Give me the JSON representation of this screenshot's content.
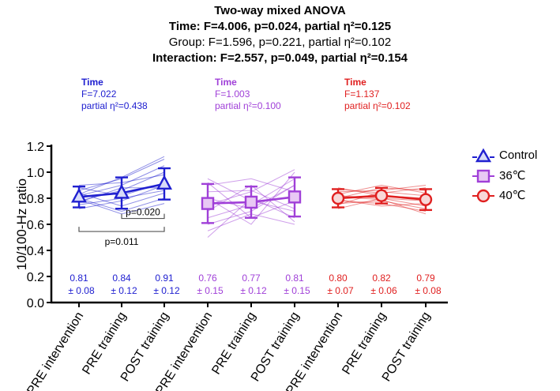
{
  "header": {
    "title": "Two-way mixed ANOVA",
    "time_line": "Time: F=4.006, p=0.024, partial η²=0.125",
    "group_line": "Group: F=1.596, p=0.221, partial η²=0.102",
    "interaction_line": "Interaction: F=2.557, p=0.049, partial η²=0.154"
  },
  "colors": {
    "control": "#2020d0",
    "c36": "#a040d8",
    "c40": "#e02020",
    "axis": "#000000"
  },
  "annotations": [
    {
      "title": "Time",
      "f": "F=7.022",
      "eta": "partial η²=0.438"
    },
    {
      "title": "Time",
      "f": "F=1.003",
      "eta": "partial η²=0.100"
    },
    {
      "title": "Time",
      "f": "F=1.137",
      "eta": "partial η²=0.102"
    }
  ],
  "legend": [
    {
      "label": "Control",
      "marker": "triangle"
    },
    {
      "label": "36℃",
      "marker": "square"
    },
    {
      "label": "40℃",
      "marker": "circle"
    }
  ],
  "chart_data": {
    "type": "scatter",
    "ylabel": "10/100-Hz ratio",
    "xlabel": "",
    "ylim": [
      0.0,
      1.2
    ],
    "yticks": [
      "0.0",
      "0.2",
      "0.4",
      "0.6",
      "0.8",
      "1.0",
      "1.2"
    ],
    "categories": [
      "PRE intervention",
      "PRE training",
      "POST training",
      "PRE intervention",
      "PRE training",
      "POST training",
      "PRE intervention",
      "PRE training",
      "POST training"
    ],
    "series": [
      {
        "name": "Control",
        "marker": "triangle",
        "means": [
          0.81,
          0.84,
          0.91
        ],
        "sds": [
          0.08,
          0.12,
          0.12
        ],
        "mean_labels": [
          "0.81",
          "0.84",
          "0.91"
        ],
        "sd_labels": [
          "± 0.08",
          "± 0.12",
          "± 0.12"
        ],
        "individuals": [
          [
            0.72,
            0.78,
            0.9
          ],
          [
            0.75,
            0.8,
            0.86
          ],
          [
            0.78,
            0.86,
            1.0
          ],
          [
            0.8,
            0.7,
            0.8
          ],
          [
            0.82,
            0.9,
            1.05
          ],
          [
            0.84,
            0.74,
            0.84
          ],
          [
            0.86,
            0.95,
            1.1
          ],
          [
            0.88,
            0.82,
            0.92
          ],
          [
            0.79,
            0.68,
            0.76
          ],
          [
            0.83,
            0.96,
            1.12
          ],
          [
            0.77,
            0.88,
            0.88
          ],
          [
            0.9,
            0.92,
            0.98
          ]
        ]
      },
      {
        "name": "36℃",
        "marker": "square",
        "means": [
          0.76,
          0.77,
          0.81
        ],
        "sds": [
          0.15,
          0.12,
          0.15
        ],
        "mean_labels": [
          "0.76",
          "0.77",
          "0.81"
        ],
        "sd_labels": [
          "± 0.15",
          "± 0.12",
          "± 0.15"
        ],
        "individuals": [
          [
            0.5,
            0.8,
            0.65
          ],
          [
            0.6,
            0.7,
            0.9
          ],
          [
            0.92,
            0.65,
            0.78
          ],
          [
            0.7,
            0.9,
            0.62
          ],
          [
            0.8,
            0.6,
            1.0
          ],
          [
            0.85,
            0.86,
            0.72
          ],
          [
            0.65,
            0.75,
            0.95
          ],
          [
            0.9,
            0.95,
            0.85
          ],
          [
            0.55,
            0.68,
            0.6
          ],
          [
            0.75,
            0.85,
            1.02
          ],
          [
            0.95,
            0.78,
            0.7
          ],
          [
            0.8,
            0.72,
            0.9
          ]
        ]
      },
      {
        "name": "40℃",
        "marker": "circle",
        "means": [
          0.8,
          0.82,
          0.79
        ],
        "sds": [
          0.07,
          0.06,
          0.08
        ],
        "mean_labels": [
          "0.80",
          "0.82",
          "0.79"
        ],
        "sd_labels": [
          "± 0.07",
          "± 0.06",
          "± 0.08"
        ],
        "individuals": [
          [
            0.72,
            0.8,
            0.78
          ],
          [
            0.75,
            0.85,
            0.82
          ],
          [
            0.78,
            0.76,
            0.7
          ],
          [
            0.8,
            0.88,
            0.86
          ],
          [
            0.82,
            0.8,
            0.74
          ],
          [
            0.85,
            0.86,
            0.9
          ],
          [
            0.88,
            0.82,
            0.8
          ],
          [
            0.76,
            0.78,
            0.72
          ],
          [
            0.83,
            0.9,
            0.84
          ],
          [
            0.79,
            0.74,
            0.76
          ],
          [
            0.87,
            0.84,
            0.88
          ],
          [
            0.81,
            0.79,
            0.68
          ]
        ]
      }
    ],
    "significance": [
      {
        "from": 1,
        "to": 2,
        "label": "p=0.020"
      },
      {
        "from": 0,
        "to": 2,
        "label": "p=0.011"
      }
    ]
  }
}
